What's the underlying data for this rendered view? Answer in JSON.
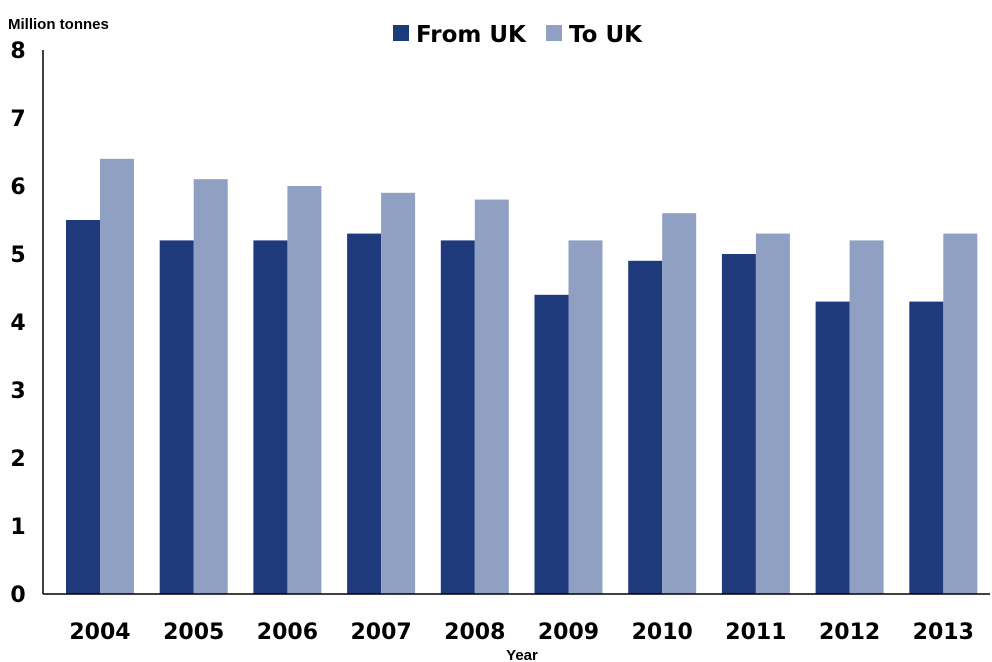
{
  "chart_data": {
    "type": "bar",
    "ylabel": "Million tonnes",
    "xlabel": "Year",
    "categories": [
      "2004",
      "2005",
      "2006",
      "2007",
      "2008",
      "2009",
      "2010",
      "2011",
      "2012",
      "2013"
    ],
    "series": [
      {
        "name": "From UK",
        "color": "#1f3a7c",
        "values": [
          5.5,
          5.2,
          5.2,
          5.3,
          5.2,
          4.4,
          4.9,
          5.0,
          4.3,
          4.3
        ]
      },
      {
        "name": "To UK",
        "color": "#8fa0c3",
        "values": [
          6.4,
          6.1,
          6.0,
          5.9,
          5.8,
          5.2,
          5.6,
          5.3,
          5.2,
          5.3
        ]
      }
    ],
    "ylim": [
      0,
      8
    ],
    "yticks": [
      "0",
      "1",
      "2",
      "3",
      "4",
      "5",
      "6",
      "7",
      "8"
    ],
    "grid": false,
    "legend": "top-center"
  }
}
